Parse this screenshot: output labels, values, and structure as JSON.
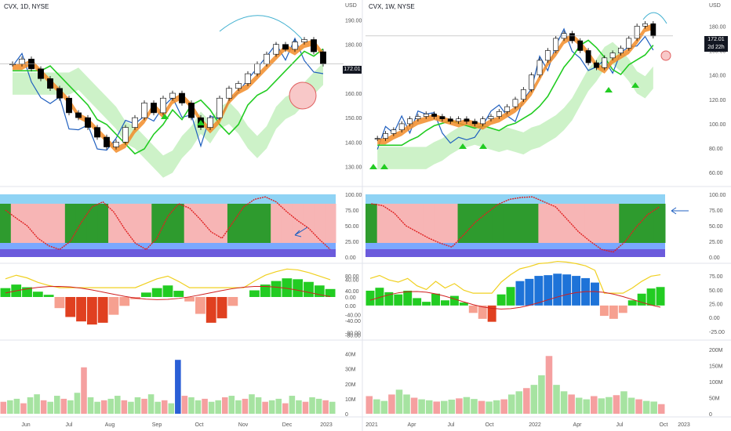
{
  "left": {
    "symbol": "CVX, 1D, NYSE",
    "currency": "USD",
    "price_tag": "172.01",
    "price_yticks": [
      "190.00",
      "180.00",
      "170.00",
      "160.00",
      "150.00",
      "140.00",
      "130.00"
    ],
    "osc1_yticks": [
      "100.00",
      "75.00",
      "50.00",
      "25.00",
      "0.00"
    ],
    "osc2_yticks": [
      "40.00",
      "0.00",
      "-40.00",
      "-80.00"
    ],
    "vol_yticks": [
      "40M",
      "30M",
      "20M",
      "10M",
      "0"
    ],
    "xticks": [
      "Jun",
      "Jul",
      "Aug",
      "Sep",
      "Oct",
      "Nov",
      "Dec",
      "2023"
    ]
  },
  "right": {
    "symbol": "CVX, 1W, NYSE",
    "currency": "USD",
    "price_tag": "172.01",
    "countdown": "2d 22h",
    "price_yticks": [
      "180.00",
      "160.00",
      "140.00",
      "120.00",
      "100.00",
      "80.00",
      "60.00"
    ],
    "osc1_yticks": [
      "100.00",
      "75.00",
      "50.00",
      "25.00",
      "0.00"
    ],
    "osc2_yticks": [
      "80.00",
      "40.00",
      "0.00",
      "-40.00",
      "-80.00"
    ],
    "osc2_right_yticks": [
      "75.00",
      "50.00",
      "25.00",
      "0.00",
      "-25.00"
    ],
    "vol_yticks": [
      "200M",
      "150M",
      "100M",
      "50M",
      "0"
    ],
    "xticks": [
      "2021",
      "Apr",
      "Jul",
      "Oct",
      "2022",
      "Apr",
      "Jul",
      "Oct",
      "2023"
    ]
  },
  "chart_data": [
    {
      "type": "candlestick",
      "title": "CVX, 1D, NYSE",
      "ylim": [
        125,
        195
      ],
      "y_ticks": [
        130,
        140,
        150,
        160,
        170,
        180,
        190
      ],
      "x_ticks": [
        "Jun",
        "Jul",
        "Aug",
        "Sep",
        "Oct",
        "Nov",
        "Dec",
        "2023"
      ],
      "last_price": 172.01,
      "close_approx": [
        172,
        174,
        170,
        166,
        162,
        158,
        152,
        150,
        146,
        142,
        138,
        140,
        146,
        150,
        156,
        152,
        158,
        160,
        156,
        150,
        146,
        150,
        158,
        162,
        164,
        168,
        172,
        176,
        180,
        178,
        181,
        182,
        177,
        172
      ],
      "colors": {
        "up": "#ffffff",
        "down": "#000000",
        "ema_band": "#f28c28",
        "trend_green": "#22cc22",
        "red_line": "#dd2222",
        "blue_line": "#1f5fbf",
        "cloud": "#9fe39f",
        "magenta_fill": "#e040a0"
      }
    },
    {
      "type": "candlestick",
      "title": "CVX, 1W, NYSE",
      "ylim": [
        55,
        195
      ],
      "y_ticks": [
        60,
        80,
        100,
        120,
        140,
        160,
        180
      ],
      "x_ticks": [
        "2021",
        "Apr",
        "Jul",
        "Oct",
        "2022",
        "Apr",
        "Jul",
        "Oct",
        "2023"
      ],
      "last_price": 172.01,
      "close_approx": [
        88,
        92,
        95,
        100,
        104,
        106,
        108,
        106,
        104,
        102,
        104,
        102,
        100,
        104,
        106,
        110,
        114,
        120,
        128,
        140,
        152,
        160,
        170,
        174,
        168,
        160,
        150,
        146,
        154,
        158,
        162,
        170,
        180,
        182,
        172
      ]
    },
    {
      "type": "area",
      "title": "Oscillator 1 (0-100)",
      "ylim": [
        0,
        100
      ],
      "y_ticks": [
        0,
        25,
        50,
        75,
        100
      ],
      "left_values": [
        75,
        62,
        50,
        30,
        18,
        12,
        25,
        55,
        80,
        88,
        72,
        45,
        22,
        12,
        30,
        65,
        85,
        78,
        60,
        40,
        30,
        55,
        80,
        92,
        96,
        88,
        72,
        58,
        46,
        28,
        12
      ],
      "right_values": [
        85,
        82,
        70,
        50,
        40,
        30,
        22,
        16,
        35,
        55,
        70,
        84,
        92,
        95,
        96,
        88,
        80,
        60,
        40,
        25,
        12,
        8,
        24,
        48,
        68,
        80
      ]
    },
    {
      "type": "bar",
      "title": "Oscillator 2 (histogram)",
      "left_ylim": [
        -90,
        60
      ],
      "left_values": [
        20,
        28,
        22,
        12,
        5,
        -25,
        -45,
        -55,
        -62,
        -58,
        -40,
        -20,
        -5,
        10,
        20,
        26,
        14,
        -10,
        -38,
        -58,
        -48,
        -20,
        0,
        15,
        28,
        36,
        42,
        40,
        34,
        26,
        18
      ],
      "right_ylim": [
        -85,
        95
      ],
      "right_values": [
        40,
        48,
        36,
        30,
        40,
        20,
        10,
        32,
        14,
        26,
        8,
        -20,
        -36,
        -44,
        30,
        50,
        66,
        72,
        80,
        82,
        86,
        84,
        80,
        74,
        62,
        -28,
        -36,
        -20,
        14,
        32,
        46,
        50
      ]
    },
    {
      "type": "bar",
      "title": "Volume",
      "left_ylim": [
        0,
        45
      ],
      "left_values": [
        8,
        9,
        10,
        7,
        11,
        13,
        9,
        8,
        12,
        10,
        9,
        14,
        31,
        11,
        8,
        9,
        10,
        12,
        9,
        8,
        11,
        10,
        13,
        8,
        9,
        7,
        36,
        12,
        11,
        9,
        10,
        8,
        9,
        11,
        12,
        9,
        10,
        13,
        11,
        8,
        9,
        10,
        7,
        12,
        9,
        8,
        11,
        10,
        9,
        8
      ],
      "right_ylim": [
        0,
        210
      ],
      "right_values": [
        55,
        45,
        40,
        60,
        75,
        60,
        50,
        45,
        42,
        38,
        40,
        44,
        48,
        52,
        46,
        40,
        38,
        42,
        45,
        60,
        70,
        80,
        90,
        120,
        180,
        90,
        70,
        60,
        50,
        45,
        55,
        48,
        52,
        58,
        70,
        50,
        45,
        40,
        38,
        30
      ]
    }
  ]
}
